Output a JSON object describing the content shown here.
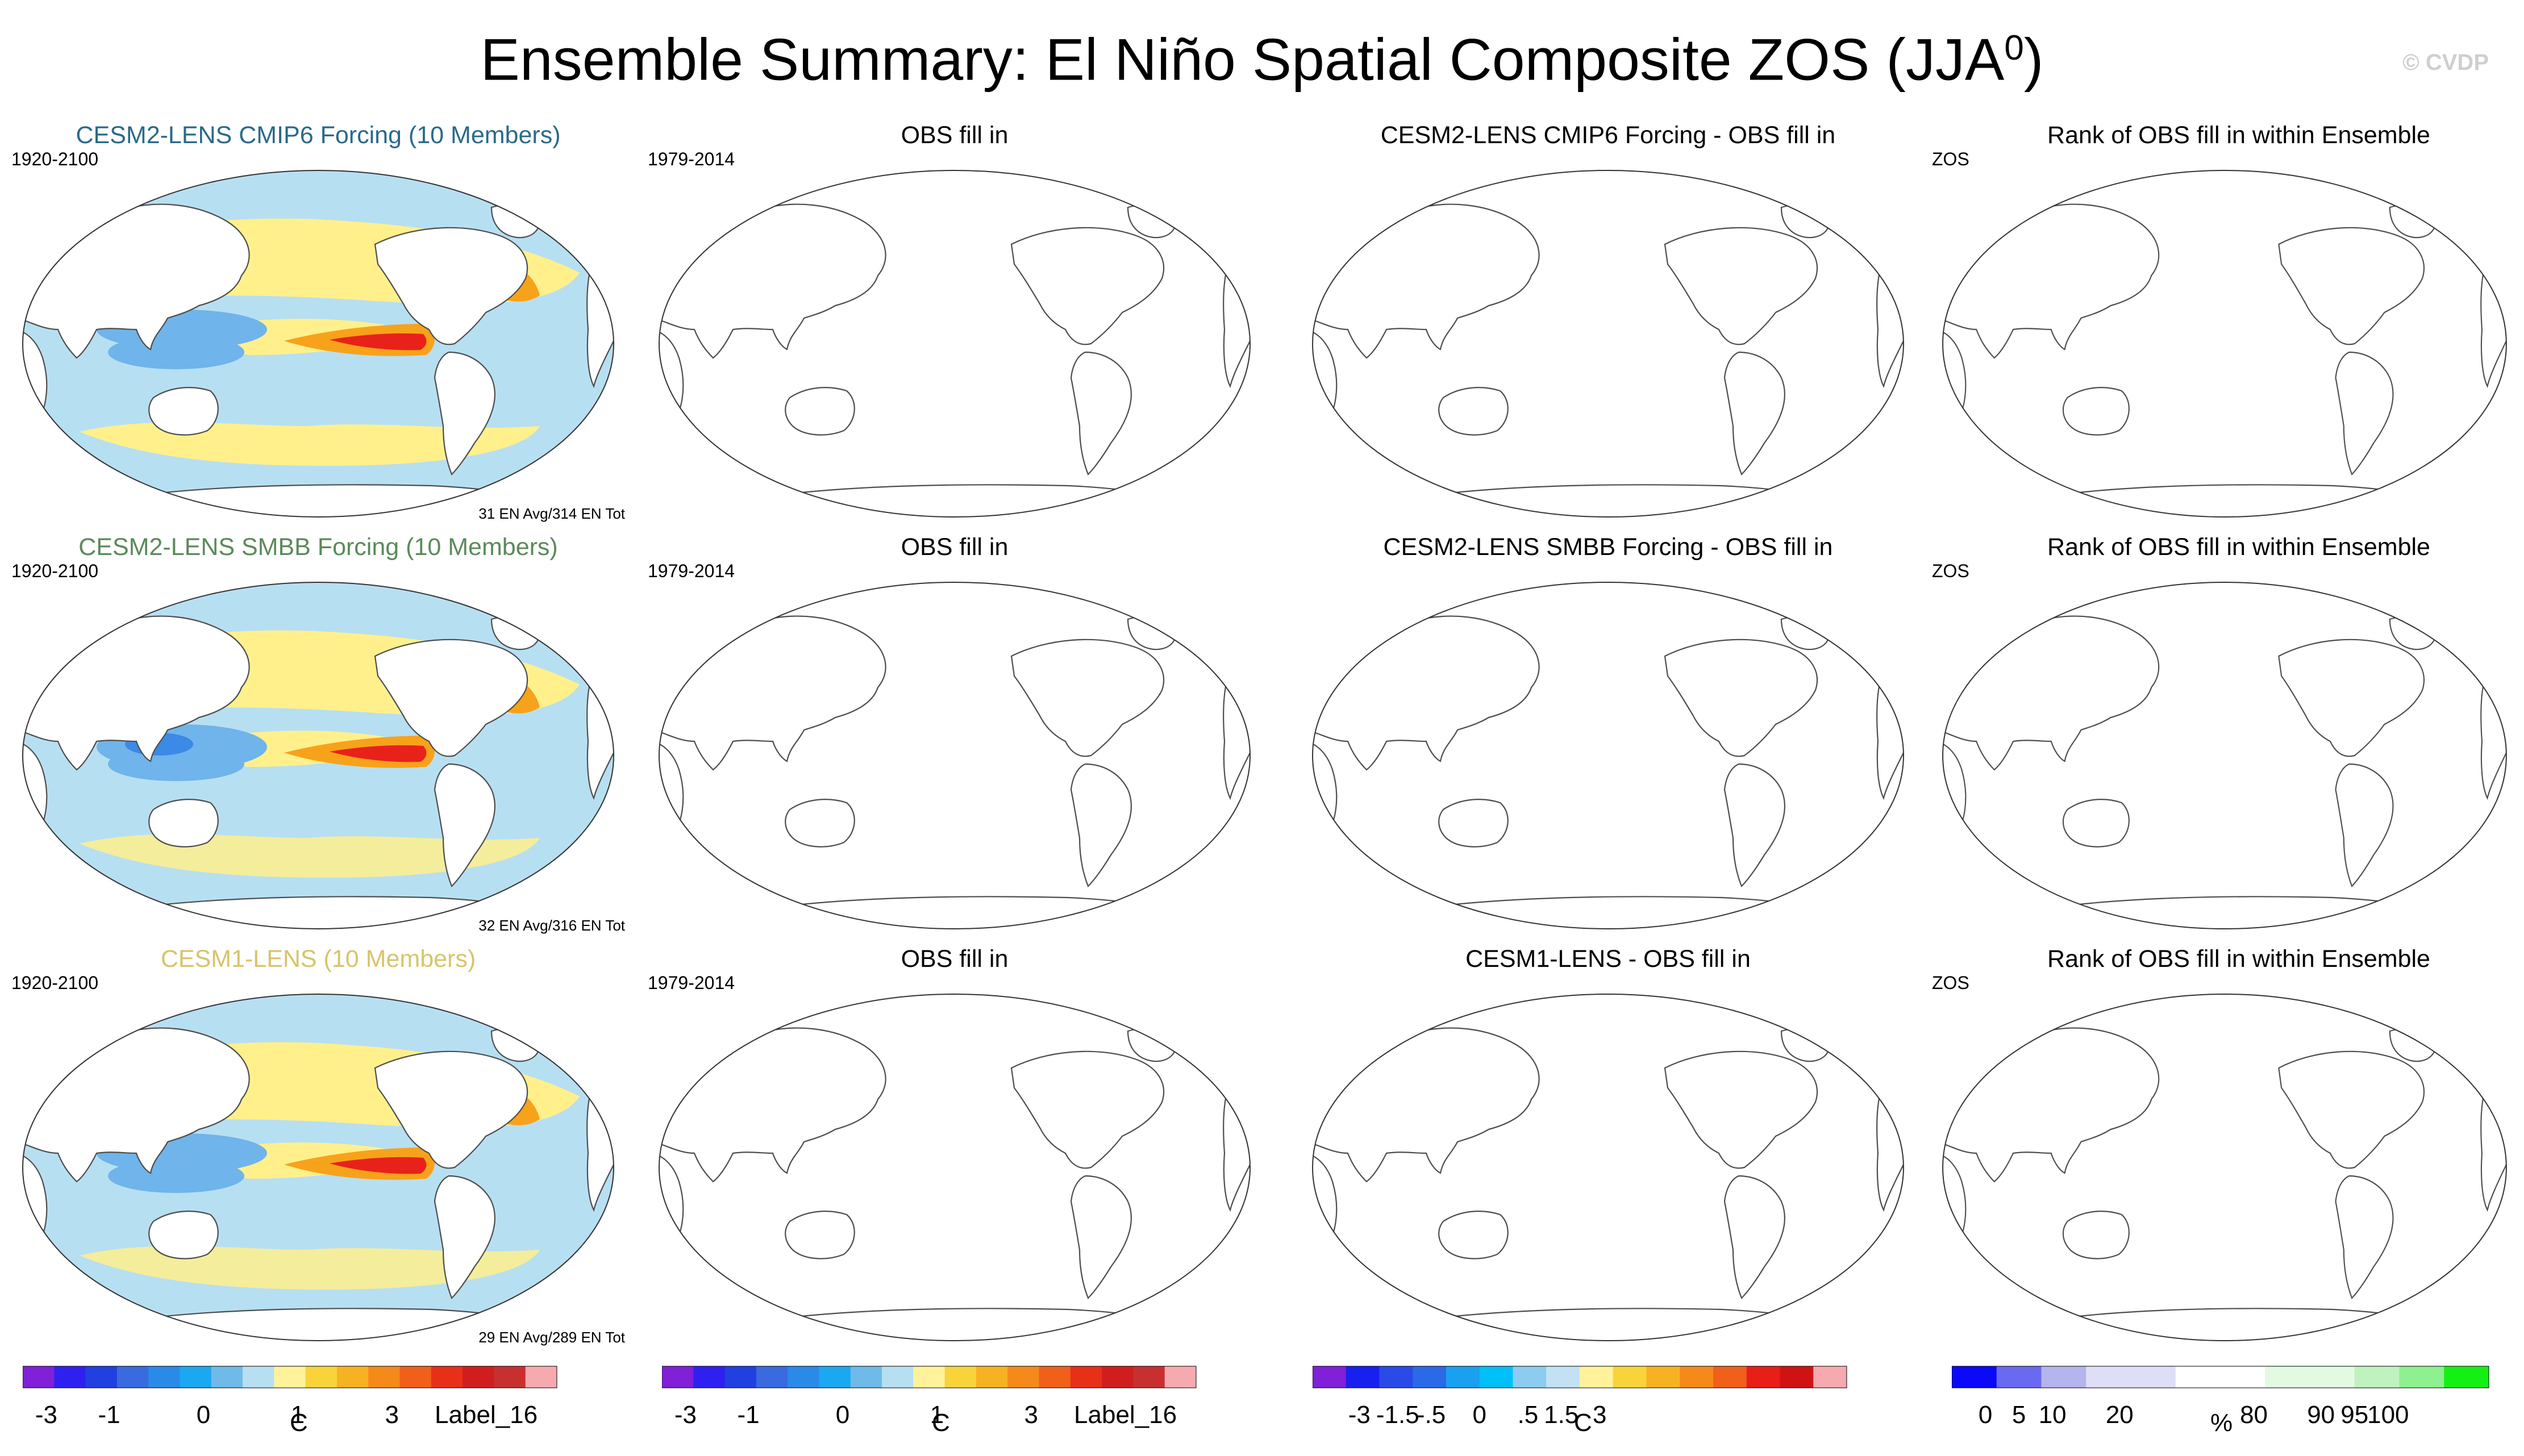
{
  "title": "Ensemble Summary: El Niño Spatial Composite ZOS (JJA",
  "title_sup": "0",
  "title_close": ")",
  "watermark": "© CVDP",
  "colors": {
    "pos_weak": "#fff08c",
    "pos_mid": "#f7a21b",
    "pos_strong": "#e8221a",
    "neg_weak": "#b7dff2",
    "neg_mid": "#6fb4ea",
    "neg_strong": "#3a8ae6",
    "land": "#ffffff",
    "coast": "#4d4d4d"
  },
  "colorbars": {
    "temp_colors": [
      "#8020d8",
      "#3020f0",
      "#2040e0",
      "#3a6ae0",
      "#2a8ae8",
      "#1aa8f0",
      "#6fbae8",
      "#b7dff2",
      "#fff29a",
      "#f8d43a",
      "#f7b222",
      "#f58a1a",
      "#f0601a",
      "#e83018",
      "#d01e1e",
      "#c83030",
      "#f6aab0"
    ],
    "temp_ticks": [
      "-3",
      "-1",
      "0",
      "1",
      "3",
      "Label_16"
    ],
    "diff_colors": [
      "#8020d8",
      "#1820f0",
      "#2a4ae8",
      "#2a6ae6",
      "#1aa0f0",
      "#00c0f8",
      "#8cccf0",
      "#c2e2f4",
      "#fff29a",
      "#f8d43a",
      "#f7b222",
      "#f58a1a",
      "#f0601a",
      "#e81e18",
      "#d01212",
      "#f6aab0"
    ],
    "diff_ticks": [
      "-3",
      "-1.5",
      "-.5",
      "0",
      ".5",
      "1.5",
      "3"
    ],
    "rank_colors": [
      "#0a0af8",
      "#6a6af0",
      "#b4b4ee",
      "#dedef6",
      "#dedef6",
      "#ffffff",
      "#ffffff",
      "#e2fae2",
      "#e2fae2",
      "#bff2bf",
      "#8ef08e",
      "#14f014"
    ],
    "rank_ticks": [
      "0",
      "5",
      "10",
      "20",
      "80",
      "90",
      "95",
      "100"
    ],
    "unit_c": "C",
    "unit_pct": "%"
  },
  "rows": [
    {
      "model_title": "CESM2-LENS CMIP6 Forcing (10 Members)",
      "model_title_color": "#2a6a8a",
      "years": "1920-2100",
      "count": "31 EN Avg/314 EN Tot",
      "obs_title": "OBS fill in",
      "obs_years": "1979-2014",
      "diff_title": "CESM2-LENS CMIP6 Forcing - OBS fill in",
      "rank_title": "Rank of OBS fill in within Ensemble",
      "rank_var": "ZOS"
    },
    {
      "model_title": "CESM2-LENS SMBB Forcing (10 Members)",
      "model_title_color": "#5b8a5b",
      "years": "1920-2100",
      "count": "32 EN Avg/316 EN Tot",
      "obs_title": "OBS fill in",
      "obs_years": "1979-2014",
      "diff_title": "CESM2-LENS SMBB Forcing - OBS fill in",
      "rank_title": "Rank of OBS fill in within Ensemble",
      "rank_var": "ZOS"
    },
    {
      "model_title": "CESM1-LENS (10 Members)",
      "model_title_color": "#d8c46a",
      "years": "1920-2100",
      "count": "29 EN Avg/289 EN Tot",
      "obs_title": "OBS fill in",
      "obs_years": "1979-2014",
      "diff_title": "CESM1-LENS - OBS fill in",
      "rank_title": "Rank of OBS fill in within Ensemble",
      "rank_var": "ZOS"
    }
  ],
  "chart_data": {
    "type": "heatmap",
    "title": "Ensemble Summary: El Niño Spatial Composite ZOS (JJA0)",
    "panels": [
      {
        "row": 1,
        "column": "model",
        "title": "CESM2-LENS CMIP6 Forcing (10 Members)",
        "period": "1920-2100",
        "filled": true
      },
      {
        "row": 1,
        "column": "obs",
        "title": "OBS fill in",
        "period": "1979-2014",
        "filled": false
      },
      {
        "row": 1,
        "column": "difference",
        "title": "CESM2-LENS CMIP6 Forcing - OBS fill in",
        "filled": false
      },
      {
        "row": 1,
        "column": "rank",
        "title": "Rank of OBS fill in within Ensemble",
        "filled": false
      },
      {
        "row": 2,
        "column": "model",
        "title": "CESM2-LENS SMBB Forcing (10 Members)",
        "period": "1920-2100",
        "filled": true
      },
      {
        "row": 2,
        "column": "obs",
        "title": "OBS fill in",
        "period": "1979-2014",
        "filled": false
      },
      {
        "row": 2,
        "column": "difference",
        "title": "CESM2-LENS SMBB Forcing - OBS fill in",
        "filled": false
      },
      {
        "row": 2,
        "column": "rank",
        "title": "Rank of OBS fill in within Ensemble",
        "filled": false
      },
      {
        "row": 3,
        "column": "model",
        "title": "CESM1-LENS (10 Members)",
        "period": "1920-2100",
        "filled": true
      },
      {
        "row": 3,
        "column": "obs",
        "title": "OBS fill in",
        "period": "1979-2014",
        "filled": false
      },
      {
        "row": 3,
        "column": "difference",
        "title": "CESM1-LENS - OBS fill in",
        "filled": false
      },
      {
        "row": 3,
        "column": "rank",
        "title": "Rank of OBS fill in within Ensemble",
        "filled": false
      }
    ],
    "colorbar_units": [
      "C",
      "C",
      "C",
      "%"
    ],
    "map_projection": "robinson-like global, Pacific-centred"
  }
}
